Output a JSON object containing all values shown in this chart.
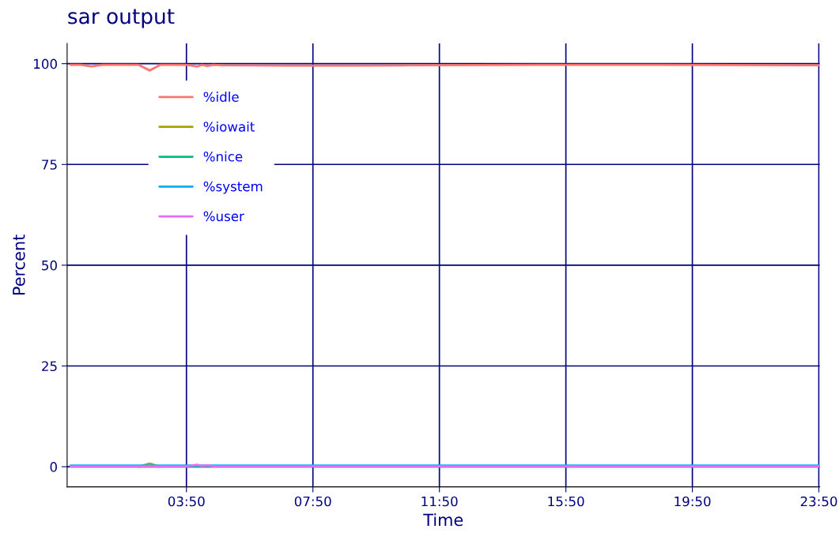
{
  "chart_data": {
    "type": "line",
    "title": "sar output",
    "xlabel": "Time",
    "ylabel": "Percent",
    "x": [
      0.17,
      0.5,
      0.83,
      1.17,
      1.5,
      2.33,
      2.67,
      3.0,
      3.83,
      4.17,
      4.33,
      4.5,
      4.67,
      5,
      7,
      9,
      11,
      15,
      19,
      23.83
    ],
    "series": [
      {
        "name": "%idle",
        "color": "#f8766d",
        "values": [
          99.7,
          99.7,
          99.3,
          99.7,
          99.7,
          99.7,
          98.3,
          99.7,
          99.7,
          99.3,
          99.7,
          99.4,
          99.7,
          99.6,
          99.5,
          99.5,
          99.6,
          99.7,
          99.7,
          99.6
        ]
      },
      {
        "name": "%iowait",
        "color": "#a3a500",
        "values": [
          null,
          null,
          null,
          null,
          null,
          0,
          0.8,
          0,
          null,
          null,
          null,
          null,
          null,
          null,
          null,
          null,
          null,
          null,
          null,
          null
        ]
      },
      {
        "name": "%nice",
        "color": "#00bf7d",
        "values": [
          0,
          0,
          0,
          0,
          0,
          0,
          0,
          0,
          0,
          0,
          0,
          0,
          0,
          0,
          0,
          0,
          0,
          0,
          0,
          0
        ]
      },
      {
        "name": "%system",
        "color": "#00b0f6",
        "values": [
          0.3,
          0.3,
          0.3,
          0.3,
          0.3,
          0.3,
          0.3,
          0.3,
          0.3,
          0.3,
          0.3,
          0.3,
          0.3,
          0.3,
          0.3,
          0.3,
          0.3,
          0.3,
          0.3,
          0.3
        ]
      },
      {
        "name": "%user",
        "color": "#e76bf3",
        "values": [
          0.1,
          0.1,
          0.1,
          0.1,
          0.1,
          0.1,
          0.1,
          0.1,
          0.1,
          0.5,
          0.2,
          0.4,
          0.1,
          0.1,
          0.1,
          0.1,
          0.1,
          0.1,
          0.1,
          0.1
        ]
      }
    ],
    "xlim": [
      0.06,
      23.86
    ],
    "ylim": [
      -5,
      105
    ],
    "xticks": [
      {
        "value": 3.8333,
        "label": "03:50"
      },
      {
        "value": 7.8333,
        "label": "07:50"
      },
      {
        "value": 11.8333,
        "label": "11:50"
      },
      {
        "value": 15.8333,
        "label": "15:50"
      },
      {
        "value": 19.8333,
        "label": "19:50"
      },
      {
        "value": 23.8333,
        "label": "23:50"
      }
    ],
    "yticks": [
      0,
      25,
      50,
      75,
      100
    ],
    "grid": true,
    "legend": "top left",
    "marker": "none",
    "line_style": "solid"
  }
}
